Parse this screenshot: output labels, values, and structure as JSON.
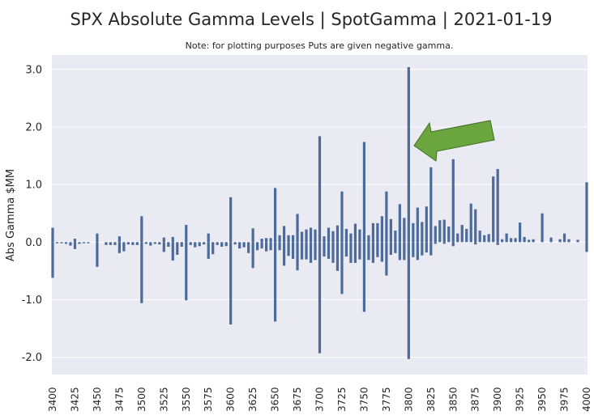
{
  "chart_data": {
    "type": "bar",
    "title": "SPX Absolute Gamma Levels | SpotGamma | 2021-01-19",
    "subtitle": "Note: for plotting purposes Puts are given negative gamma.",
    "xlabel": "",
    "ylabel": "Abs Gamma $MM",
    "ylim": [
      -2.3,
      3.25
    ],
    "yticks": [
      3.0,
      2.0,
      1.0,
      0.0,
      -1.0,
      -2.0
    ],
    "ytick_labels": [
      "3.0",
      "2.0",
      "1.0",
      "0.0",
      "-1.0",
      "-2.0"
    ],
    "xlim": [
      3400,
      4000
    ],
    "xticks": [
      3400,
      3425,
      3450,
      3475,
      3500,
      3525,
      3550,
      3575,
      3600,
      3625,
      3650,
      3675,
      3700,
      3725,
      3750,
      3775,
      3800,
      3825,
      3850,
      3875,
      3900,
      3925,
      3950,
      3975,
      4000
    ],
    "grid": true,
    "bar_color": "#4c6b9a",
    "background_color": "#eaeaf2",
    "annotation": {
      "type": "arrow",
      "color": "#6aa53e",
      "points_to_strike": 3800
    },
    "series": [
      {
        "values": [
          [
            3400,
            0.25
          ],
          [
            3405,
            0.0
          ],
          [
            3410,
            0.0
          ],
          [
            3415,
            0.0
          ],
          [
            3420,
            0.0
          ],
          [
            3425,
            0.06
          ],
          [
            3430,
            0.0
          ],
          [
            3435,
            0.0
          ],
          [
            3440,
            0.0
          ],
          [
            3450,
            0.15
          ],
          [
            3460,
            0.0
          ],
          [
            3465,
            0.0
          ],
          [
            3470,
            0.0
          ],
          [
            3475,
            0.1
          ],
          [
            3480,
            0.0
          ],
          [
            3485,
            0.0
          ],
          [
            3490,
            0.0
          ],
          [
            3495,
            0.0
          ],
          [
            3500,
            0.45
          ],
          [
            3505,
            0.0
          ],
          [
            3510,
            0.0
          ],
          [
            3515,
            0.0
          ],
          [
            3520,
            0.0
          ],
          [
            3525,
            0.08
          ],
          [
            3530,
            0.0
          ],
          [
            3535,
            0.09
          ],
          [
            3540,
            0.0
          ],
          [
            3545,
            0.0
          ],
          [
            3550,
            0.3
          ],
          [
            3555,
            0.0
          ],
          [
            3560,
            0.0
          ],
          [
            3565,
            0.0
          ],
          [
            3570,
            0.0
          ],
          [
            3575,
            0.15
          ],
          [
            3580,
            0.0
          ],
          [
            3585,
            0.0
          ],
          [
            3590,
            0.0
          ],
          [
            3595,
            0.0
          ],
          [
            3600,
            0.78
          ],
          [
            3605,
            0.0
          ],
          [
            3610,
            0.0
          ],
          [
            3615,
            0.0
          ],
          [
            3620,
            0.0
          ],
          [
            3625,
            0.24
          ],
          [
            3630,
            0.0
          ],
          [
            3635,
            0.06
          ],
          [
            3640,
            0.07
          ],
          [
            3645,
            0.07
          ],
          [
            3650,
            0.94
          ],
          [
            3655,
            0.12
          ],
          [
            3660,
            0.28
          ],
          [
            3665,
            0.12
          ],
          [
            3670,
            0.12
          ],
          [
            3675,
            0.49
          ],
          [
            3680,
            0.18
          ],
          [
            3685,
            0.22
          ],
          [
            3690,
            0.25
          ],
          [
            3695,
            0.22
          ],
          [
            3700,
            1.84
          ],
          [
            3705,
            0.1
          ],
          [
            3710,
            0.25
          ],
          [
            3715,
            0.19
          ],
          [
            3720,
            0.29
          ],
          [
            3725,
            0.88
          ],
          [
            3730,
            0.23
          ],
          [
            3735,
            0.15
          ],
          [
            3740,
            0.32
          ],
          [
            3745,
            0.22
          ],
          [
            3750,
            1.74
          ],
          [
            3755,
            0.12
          ],
          [
            3760,
            0.33
          ],
          [
            3765,
            0.33
          ],
          [
            3770,
            0.45
          ],
          [
            3775,
            0.88
          ],
          [
            3780,
            0.4
          ],
          [
            3785,
            0.2
          ],
          [
            3790,
            0.66
          ],
          [
            3795,
            0.42
          ],
          [
            3800,
            3.04
          ],
          [
            3805,
            0.33
          ],
          [
            3810,
            0.6
          ],
          [
            3815,
            0.35
          ],
          [
            3820,
            0.62
          ],
          [
            3825,
            1.3
          ],
          [
            3830,
            0.28
          ],
          [
            3835,
            0.38
          ],
          [
            3840,
            0.39
          ],
          [
            3845,
            0.27
          ],
          [
            3850,
            1.44
          ],
          [
            3855,
            0.15
          ],
          [
            3860,
            0.3
          ],
          [
            3865,
            0.23
          ],
          [
            3870,
            0.67
          ],
          [
            3875,
            0.57
          ],
          [
            3880,
            0.2
          ],
          [
            3885,
            0.12
          ],
          [
            3890,
            0.14
          ],
          [
            3895,
            1.14
          ],
          [
            3900,
            1.27
          ],
          [
            3905,
            0.05
          ],
          [
            3910,
            0.15
          ],
          [
            3915,
            0.07
          ],
          [
            3920,
            0.07
          ],
          [
            3925,
            0.34
          ],
          [
            3930,
            0.09
          ],
          [
            3935,
            0.04
          ],
          [
            3940,
            0.05
          ],
          [
            3950,
            0.5
          ],
          [
            3960,
            0.08
          ],
          [
            3970,
            0.05
          ],
          [
            3975,
            0.15
          ],
          [
            3980,
            0.05
          ],
          [
            3990,
            0.04
          ],
          [
            4000,
            1.04
          ]
        ]
      },
      {
        "values": [
          [
            3400,
            -0.62
          ],
          [
            3405,
            -0.02
          ],
          [
            3410,
            -0.02
          ],
          [
            3415,
            -0.03
          ],
          [
            3420,
            -0.06
          ],
          [
            3425,
            -0.12
          ],
          [
            3430,
            -0.03
          ],
          [
            3435,
            -0.02
          ],
          [
            3440,
            -0.02
          ],
          [
            3450,
            -0.43
          ],
          [
            3460,
            -0.05
          ],
          [
            3465,
            -0.05
          ],
          [
            3470,
            -0.05
          ],
          [
            3475,
            -0.19
          ],
          [
            3480,
            -0.16
          ],
          [
            3485,
            -0.04
          ],
          [
            3490,
            -0.05
          ],
          [
            3495,
            -0.05
          ],
          [
            3500,
            -1.06
          ],
          [
            3505,
            -0.03
          ],
          [
            3510,
            -0.06
          ],
          [
            3515,
            -0.03
          ],
          [
            3520,
            -0.04
          ],
          [
            3525,
            -0.17
          ],
          [
            3530,
            -0.08
          ],
          [
            3535,
            -0.32
          ],
          [
            3540,
            -0.22
          ],
          [
            3545,
            -0.08
          ],
          [
            3550,
            -1.01
          ],
          [
            3555,
            -0.05
          ],
          [
            3560,
            -0.09
          ],
          [
            3565,
            -0.07
          ],
          [
            3570,
            -0.04
          ],
          [
            3575,
            -0.29
          ],
          [
            3580,
            -0.21
          ],
          [
            3585,
            -0.05
          ],
          [
            3590,
            -0.08
          ],
          [
            3595,
            -0.07
          ],
          [
            3600,
            -1.43
          ],
          [
            3605,
            -0.04
          ],
          [
            3610,
            -0.11
          ],
          [
            3615,
            -0.09
          ],
          [
            3620,
            -0.19
          ],
          [
            3625,
            -0.45
          ],
          [
            3630,
            -0.14
          ],
          [
            3635,
            -0.11
          ],
          [
            3640,
            -0.16
          ],
          [
            3645,
            -0.14
          ],
          [
            3650,
            -1.38
          ],
          [
            3655,
            -0.14
          ],
          [
            3660,
            -0.41
          ],
          [
            3665,
            -0.24
          ],
          [
            3670,
            -0.29
          ],
          [
            3675,
            -0.49
          ],
          [
            3680,
            -0.3
          ],
          [
            3685,
            -0.3
          ],
          [
            3690,
            -0.36
          ],
          [
            3695,
            -0.31
          ],
          [
            3700,
            -1.93
          ],
          [
            3705,
            -0.25
          ],
          [
            3710,
            -0.29
          ],
          [
            3715,
            -0.36
          ],
          [
            3720,
            -0.5
          ],
          [
            3725,
            -0.9
          ],
          [
            3730,
            -0.25
          ],
          [
            3735,
            -0.36
          ],
          [
            3740,
            -0.36
          ],
          [
            3745,
            -0.3
          ],
          [
            3750,
            -1.21
          ],
          [
            3755,
            -0.31
          ],
          [
            3760,
            -0.36
          ],
          [
            3765,
            -0.26
          ],
          [
            3770,
            -0.34
          ],
          [
            3775,
            -0.58
          ],
          [
            3780,
            -0.22
          ],
          [
            3785,
            -0.19
          ],
          [
            3790,
            -0.31
          ],
          [
            3795,
            -0.31
          ],
          [
            3800,
            -2.03
          ],
          [
            3805,
            -0.26
          ],
          [
            3810,
            -0.31
          ],
          [
            3815,
            -0.23
          ],
          [
            3820,
            -0.18
          ],
          [
            3825,
            -0.23
          ],
          [
            3830,
            -0.03
          ],
          [
            3835,
            0.0
          ],
          [
            3840,
            -0.03
          ],
          [
            3845,
            0.0
          ],
          [
            3850,
            -0.07
          ],
          [
            3855,
            0.0
          ],
          [
            3860,
            0.0
          ],
          [
            3865,
            0.0
          ],
          [
            3870,
            0.0
          ],
          [
            3875,
            -0.04
          ],
          [
            3880,
            0.0
          ],
          [
            3885,
            0.0
          ],
          [
            3890,
            0.0
          ],
          [
            3895,
            0.0
          ],
          [
            3900,
            -0.05
          ],
          [
            3905,
            0.0
          ],
          [
            3910,
            0.0
          ],
          [
            3915,
            0.0
          ],
          [
            3920,
            0.0
          ],
          [
            3925,
            0.0
          ],
          [
            3930,
            0.0
          ],
          [
            3935,
            0.0
          ],
          [
            3940,
            0.0
          ],
          [
            3950,
            0.0
          ],
          [
            3960,
            0.0
          ],
          [
            3970,
            0.0
          ],
          [
            3975,
            0.0
          ],
          [
            3980,
            0.0
          ],
          [
            3990,
            0.0
          ],
          [
            4000,
            -0.17
          ]
        ]
      }
    ]
  }
}
